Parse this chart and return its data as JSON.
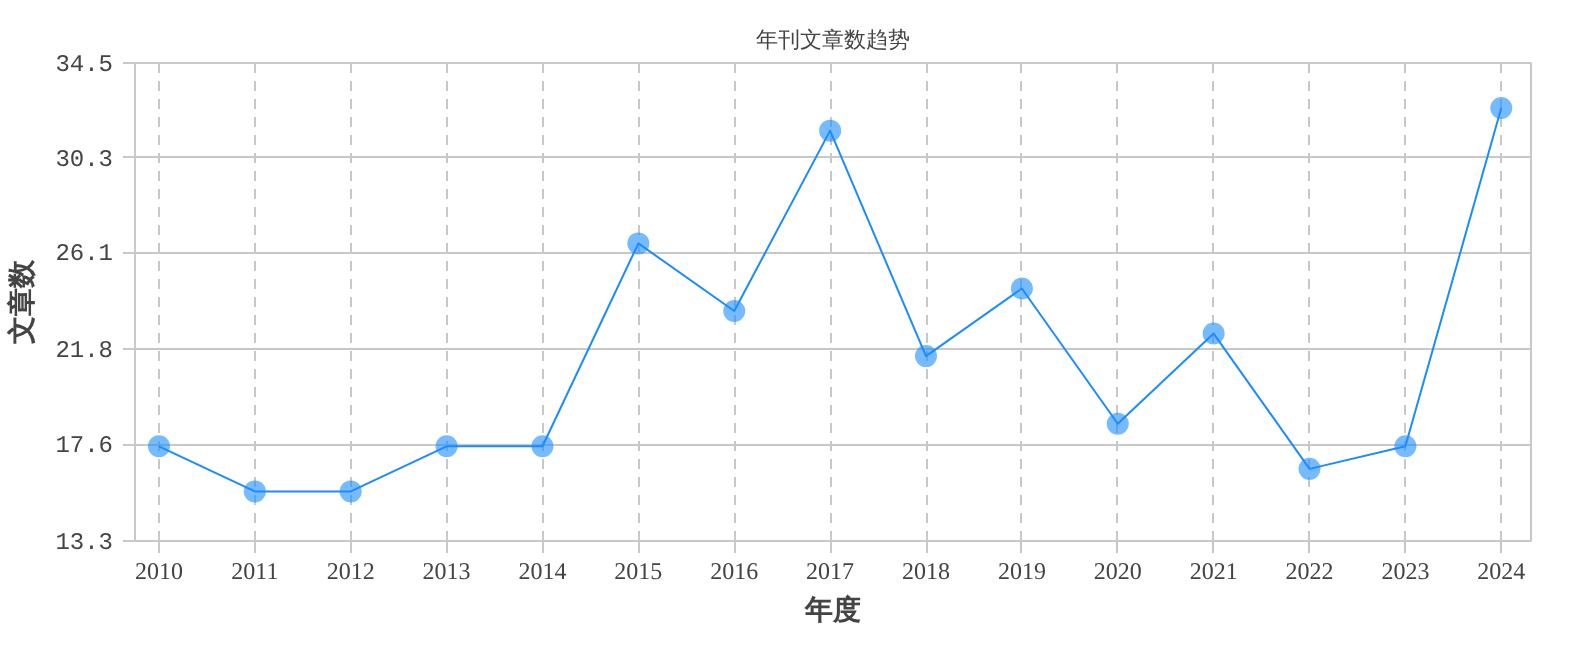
{
  "chart_data": {
    "type": "line",
    "title": "年刊文章数趋势",
    "xlabel": "年度",
    "ylabel": "文章数",
    "categories": [
      "2010",
      "2011",
      "2012",
      "2013",
      "2014",
      "2015",
      "2016",
      "2017",
      "2018",
      "2019",
      "2020",
      "2021",
      "2022",
      "2023",
      "2024"
    ],
    "series": [
      {
        "color": "#1a8cff",
        "values": [
          17.5,
          15.5,
          15.5,
          17.5,
          17.5,
          26.5,
          23.5,
          31.5,
          21.5,
          24.5,
          18.5,
          22.5,
          16.5,
          17.5,
          32.5
        ]
      }
    ],
    "ylim": [
      13.3,
      34.5
    ],
    "yticks": [
      13.3,
      17.6,
      21.8,
      26.1,
      30.3,
      34.5
    ],
    "grid": true,
    "marker": "circle",
    "line_style": "solid"
  }
}
